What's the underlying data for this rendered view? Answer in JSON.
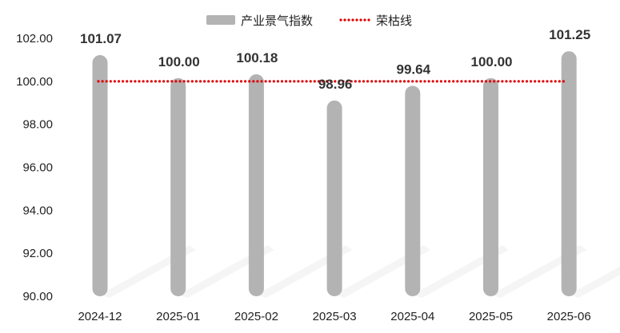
{
  "chart_data": {
    "type": "bar",
    "categories": [
      "2024-12",
      "2025-01",
      "2025-02",
      "2025-03",
      "2025-04",
      "2025-05",
      "2025-06"
    ],
    "series": [
      {
        "name": "产业景气指数",
        "type": "bar",
        "values": [
          101.07,
          100.0,
          100.18,
          98.96,
          99.64,
          100.0,
          101.25
        ],
        "color": "#b3b3b3"
      },
      {
        "name": "荣枯线",
        "type": "line",
        "style": "dotted",
        "values": [
          100,
          100,
          100,
          100,
          100,
          100,
          100
        ],
        "color": "#e00000"
      }
    ],
    "data_labels": [
      "101.07",
      "100.00",
      "100.18",
      "98.96",
      "99.64",
      "100.00",
      "101.25"
    ],
    "y_ticks": [
      "90.00",
      "92.00",
      "94.00",
      "96.00",
      "98.00",
      "100.00",
      "102.00"
    ],
    "ylim": [
      90,
      102
    ],
    "grid": false,
    "legend_position": "top-center",
    "title": "",
    "xlabel": "",
    "ylabel": ""
  }
}
